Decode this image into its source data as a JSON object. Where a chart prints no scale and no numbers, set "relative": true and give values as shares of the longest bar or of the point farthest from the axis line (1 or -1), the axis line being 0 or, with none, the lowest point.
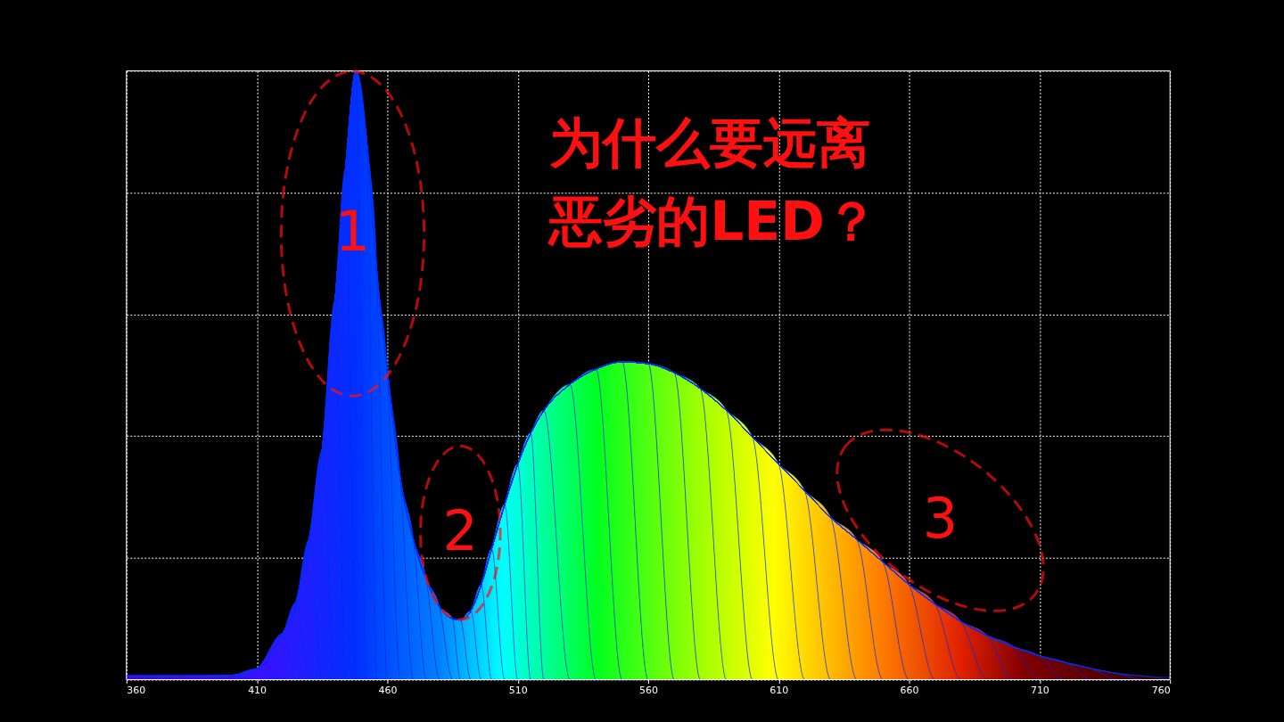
{
  "chart_data": {
    "type": "area",
    "title": "为什么要远离恶劣的LED？",
    "relative": true,
    "grid": true,
    "xlim": [
      360,
      760
    ],
    "xticks": [
      360,
      410,
      460,
      510,
      560,
      610,
      660,
      710,
      760
    ],
    "annotations": [
      "1",
      "2",
      "3"
    ],
    "series": [
      {
        "color": "#0030ff",
        "x": [
          360,
          390,
          400,
          410,
          420,
          425,
          430,
          435,
          440,
          444,
          448,
          452,
          456,
          460,
          465,
          470,
          475,
          480,
          485,
          488,
          492,
          496,
          500,
          505,
          510,
          515,
          520,
          530,
          540,
          550,
          560,
          570,
          580,
          590,
          600,
          610,
          620,
          630,
          640,
          650,
          660,
          670,
          680,
          690,
          700,
          710,
          720,
          730,
          740,
          750,
          760
        ],
        "values": [
          0.006,
          0.006,
          0.007,
          0.018,
          0.076,
          0.127,
          0.23,
          0.376,
          0.624,
          0.84,
          1.0,
          0.887,
          0.668,
          0.507,
          0.33,
          0.23,
          0.164,
          0.12,
          0.1,
          0.098,
          0.113,
          0.156,
          0.215,
          0.288,
          0.354,
          0.405,
          0.442,
          0.485,
          0.51,
          0.522,
          0.519,
          0.504,
          0.478,
          0.442,
          0.398,
          0.354,
          0.31,
          0.266,
          0.23,
          0.193,
          0.156,
          0.124,
          0.095,
          0.072,
          0.054,
          0.039,
          0.028,
          0.018,
          0.01,
          0.006,
          0.004
        ]
      }
    ]
  }
}
